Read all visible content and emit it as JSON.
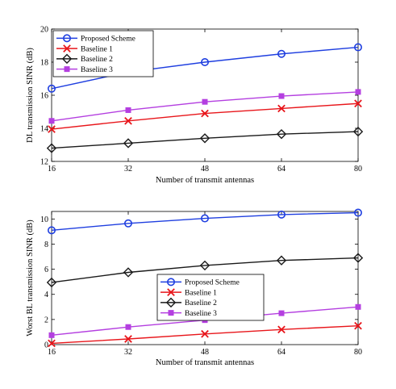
{
  "chart_data": [
    {
      "type": "line",
      "xlabel": "Number of transmit antennas",
      "ylabel": "DL transmission SINR (dB)",
      "x": [
        16,
        32,
        48,
        64,
        80
      ],
      "xlim": [
        16,
        80
      ],
      "ylim": [
        12,
        20
      ],
      "xticks": [
        "16",
        "32",
        "48",
        "64",
        "80"
      ],
      "yticks": [
        "12",
        "14",
        "16",
        "18",
        "20"
      ],
      "grid": false,
      "legend_position": "top-left",
      "series": [
        {
          "name": "Proposed Scheme",
          "marker": "circle",
          "color": "#1f3fe0",
          "values": [
            16.4,
            17.4,
            18.0,
            18.5,
            18.9
          ]
        },
        {
          "name": "Baseline 1",
          "marker": "x",
          "color": "#e8161b",
          "values": [
            13.95,
            14.45,
            14.9,
            15.2,
            15.5
          ]
        },
        {
          "name": "Baseline 2",
          "marker": "diamond",
          "color": "#1a1a1a",
          "values": [
            12.8,
            13.1,
            13.4,
            13.65,
            13.8
          ]
        },
        {
          "name": "Baseline 3",
          "marker": "square",
          "color": "#b43fe0",
          "values": [
            14.45,
            15.1,
            15.6,
            15.95,
            16.2
          ]
        }
      ]
    },
    {
      "type": "line",
      "xlabel": "Number of transmit antennas",
      "ylabel": "Worst BL transmission SINR (dB)",
      "x": [
        16,
        32,
        48,
        64,
        80
      ],
      "xlim": [
        16,
        80
      ],
      "ylim": [
        0,
        10.6
      ],
      "xticks": [
        "16",
        "32",
        "48",
        "64",
        "80"
      ],
      "yticks": [
        "0",
        "2",
        "4",
        "6",
        "8",
        "10"
      ],
      "grid": false,
      "legend_position": "center",
      "series": [
        {
          "name": "Proposed Scheme",
          "marker": "circle",
          "color": "#1f3fe0",
          "values": [
            9.1,
            9.65,
            10.05,
            10.35,
            10.5
          ]
        },
        {
          "name": "Baseline 1",
          "marker": "x",
          "color": "#e8161b",
          "values": [
            0.1,
            0.45,
            0.85,
            1.2,
            1.5
          ]
        },
        {
          "name": "Baseline 2",
          "marker": "diamond",
          "color": "#1a1a1a",
          "values": [
            4.95,
            5.75,
            6.3,
            6.7,
            6.9
          ]
        },
        {
          "name": "Baseline 3",
          "marker": "square",
          "color": "#b43fe0",
          "values": [
            0.75,
            1.4,
            1.95,
            2.5,
            3.0
          ]
        }
      ]
    }
  ]
}
